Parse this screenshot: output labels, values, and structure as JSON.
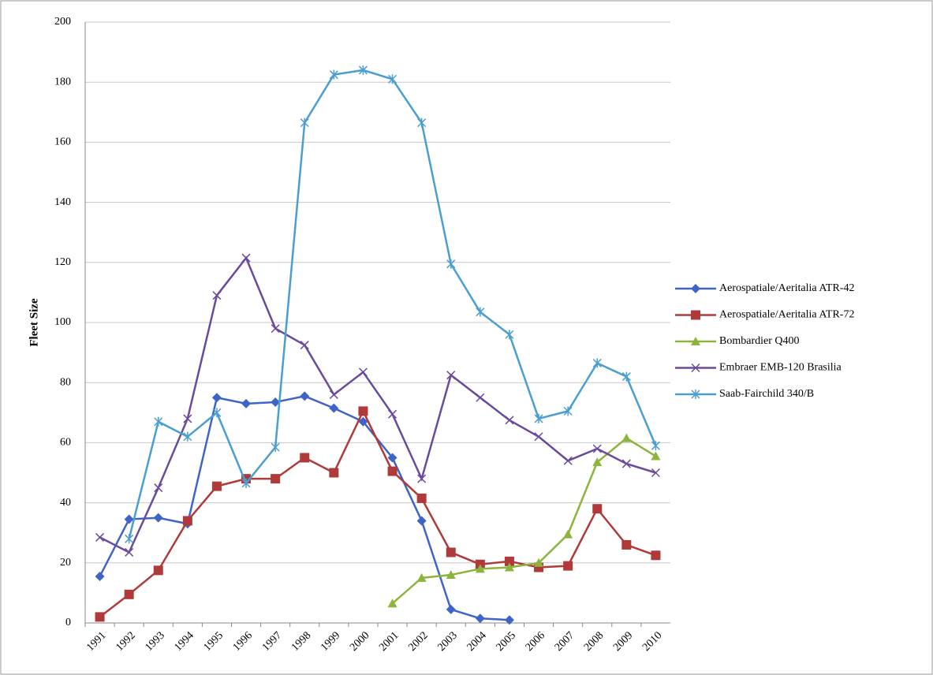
{
  "chart_data": {
    "type": "line",
    "y_label": "Fleet Size",
    "categories": [
      "1991",
      "1992",
      "1993",
      "1994",
      "1995",
      "1996",
      "1997",
      "1998",
      "1999",
      "2000",
      "2001",
      "2002",
      "2003",
      "2004",
      "2005",
      "2006",
      "2007",
      "2008",
      "2009",
      "2010"
    ],
    "ylim": [
      0,
      200
    ],
    "yticks": [
      0,
      20,
      40,
      60,
      80,
      100,
      120,
      140,
      160,
      180,
      200
    ],
    "grid": true,
    "legend": "right",
    "series": [
      {
        "name": "Aerospatiale/Aeritalia ATR-42",
        "color": "#3f64c7",
        "marker": "diamond",
        "values": [
          15.5,
          34.5,
          35,
          33,
          75,
          73,
          73.5,
          75.5,
          71.5,
          67,
          55,
          34,
          4.5,
          1.5,
          1,
          null,
          null,
          null,
          null,
          null
        ]
      },
      {
        "name": "Aerospatiale/Aeritalia ATR-72",
        "color": "#b03a3a",
        "marker": "square",
        "values": [
          2,
          9.5,
          17.5,
          34,
          45.5,
          48,
          48,
          55,
          50,
          70.5,
          50.5,
          41.5,
          23.5,
          19.5,
          20.5,
          18.5,
          19,
          38,
          26,
          22.5
        ]
      },
      {
        "name": "Bombardier Q400",
        "color": "#8db43c",
        "marker": "triangle",
        "values": [
          null,
          null,
          null,
          null,
          null,
          null,
          null,
          null,
          null,
          null,
          6.5,
          15,
          16,
          18,
          18.5,
          20,
          29.5,
          53.5,
          61.5,
          55.5
        ]
      },
      {
        "name": "Embraer EMB-120 Brasilia",
        "color": "#6a4a9c",
        "marker": "x",
        "values": [
          28.5,
          23.5,
          45,
          68,
          109,
          121.5,
          98,
          92.5,
          76,
          83.5,
          69.5,
          48,
          82.5,
          75,
          67.5,
          62,
          54,
          58,
          53,
          50
        ]
      },
      {
        "name": "Saab-Fairchild 340/B",
        "color": "#4a9ed0",
        "marker": "star",
        "values": [
          null,
          28,
          67,
          62,
          70,
          46.5,
          58.5,
          166.5,
          182.5,
          184,
          181,
          166.5,
          119.5,
          103.5,
          96,
          68,
          70.5,
          86.5,
          82,
          59
        ]
      }
    ]
  }
}
